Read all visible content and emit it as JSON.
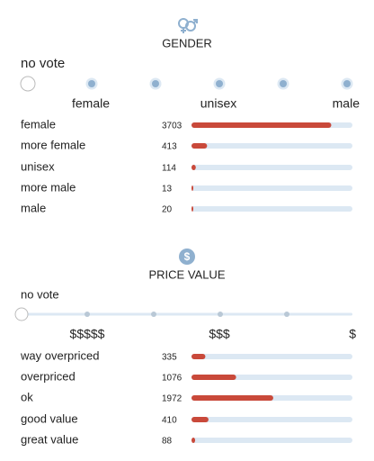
{
  "gender": {
    "title": "GENDER",
    "vote_label": "no vote",
    "scale_labels": [
      "female",
      "unisex",
      "male"
    ],
    "rows": [
      {
        "label": "female",
        "count": 3703
      },
      {
        "label": "more female",
        "count": 413
      },
      {
        "label": "unisex",
        "count": 114
      },
      {
        "label": "more male",
        "count": 13
      },
      {
        "label": "male",
        "count": 20
      }
    ]
  },
  "price_value": {
    "title": "PRICE VALUE",
    "vote_label": "no vote",
    "scale_labels": [
      "$$$$$",
      "$$$",
      "$"
    ],
    "rows": [
      {
        "label": "way overpriced",
        "count": 335
      },
      {
        "label": "overpriced",
        "count": 1076
      },
      {
        "label": "ok",
        "count": 1972
      },
      {
        "label": "good value",
        "count": 410
      },
      {
        "label": "great value",
        "count": 88
      }
    ]
  }
}
